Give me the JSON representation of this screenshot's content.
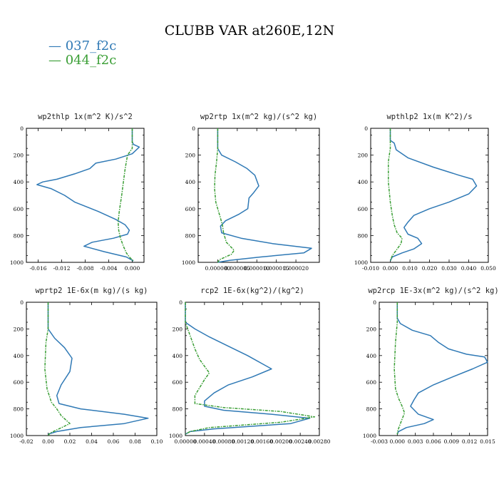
{
  "page": {
    "title": "CLUBB VAR at260E,12N"
  },
  "legend": [
    {
      "label": "— 037_f2c",
      "color": "#2f79b5"
    },
    {
      "label": "— 044_f2c",
      "color": "#3a9e35"
    }
  ],
  "chart_data": [
    {
      "type": "line",
      "title": "wp2thlp  1x(m^2 K)/s^2",
      "xlim": [
        -0.018,
        0.002
      ],
      "ylim": [
        1000,
        0
      ],
      "xticks": [
        -0.016,
        -0.012,
        -0.008,
        -0.004,
        0.0
      ],
      "xtick_labels": [
        "-0.016",
        "-0.012",
        "-0.008",
        "-0.004",
        "0.000"
      ],
      "yticks": [
        0,
        200,
        400,
        600,
        800,
        1000
      ],
      "series": [
        {
          "name": "037_f2c",
          "color": "#2f79b5",
          "dashed": false,
          "x": [
            0.0,
            0.0,
            0.0,
            0.0002,
            0.0012,
            0.0,
            -0.0028,
            -0.0062,
            -0.0072,
            -0.0098,
            -0.0128,
            -0.0152,
            -0.0162,
            -0.0138,
            -0.0115,
            -0.0098,
            -0.0058,
            -0.0028,
            -0.0012,
            -0.0005,
            -0.0008,
            -0.0032,
            -0.0068,
            -0.0082,
            -0.0048,
            -0.001,
            0.0002
          ],
          "y": [
            0,
            60,
            100,
            120,
            140,
            190,
            230,
            260,
            300,
            340,
            380,
            400,
            420,
            450,
            500,
            550,
            620,
            680,
            720,
            760,
            790,
            820,
            850,
            880,
            920,
            960,
            990
          ]
        },
        {
          "name": "044_f2c",
          "color": "#3a9e35",
          "dashed": true,
          "x": [
            0.0,
            0.0,
            0.0,
            -0.0008,
            -0.0012,
            -0.0015,
            -0.0018,
            -0.002,
            -0.0022,
            -0.0024,
            -0.0023,
            -0.002,
            -0.0015,
            -0.001,
            -0.0005,
            0.0002
          ],
          "y": [
            0,
            100,
            150,
            200,
            300,
            400,
            500,
            560,
            620,
            700,
            760,
            820,
            880,
            930,
            960,
            990
          ]
        }
      ]
    },
    {
      "type": "line",
      "title": "wp2rtp  1x(m^2 kg)/(s^2 kg)",
      "xlim": [
        -5e-06,
        2.6e-05
      ],
      "ylim": [
        1000,
        0
      ],
      "xticks": [
        0.0,
        5e-06,
        1e-05,
        1.5e-05,
        2e-05
      ],
      "xtick_labels": [
        "0.000000",
        "0.000005",
        "0.000010",
        "0.000015",
        "0.000020"
      ],
      "yticks": [
        0,
        200,
        400,
        600,
        800,
        1000
      ],
      "series": [
        {
          "name": "037_f2c",
          "color": "#2f79b5",
          "dashed": false,
          "x": [
            0.0,
            0.0,
            1e-06,
            4.5e-06,
            7.5e-06,
            9.5e-06,
            1.05e-05,
            9.2e-06,
            8e-06,
            7.7e-06,
            5.5e-06,
            2e-06,
            7e-07,
            1e-06,
            6e-06,
            1.4e-05,
            2.4e-05,
            2.2e-05,
            1.1e-05,
            3e-06,
            0.0
          ],
          "y": [
            0,
            150,
            200,
            250,
            300,
            350,
            430,
            480,
            520,
            600,
            640,
            690,
            730,
            780,
            820,
            860,
            895,
            930,
            960,
            985,
            1000
          ]
        },
        {
          "name": "044_f2c",
          "color": "#3a9e35",
          "dashed": true,
          "x": [
            0.0,
            0.0,
            -3e-07,
            -7e-07,
            -8e-07,
            -5e-07,
            5e-07,
            1.2e-06,
            1.5e-06,
            2.2e-06,
            4.2e-06,
            3.5e-06,
            5e-07,
            0.0
          ],
          "y": [
            0,
            150,
            250,
            350,
            450,
            550,
            650,
            720,
            780,
            850,
            910,
            940,
            980,
            1000
          ]
        }
      ]
    },
    {
      "type": "line",
      "title": "wpthlp2  1x(m K^2)/s",
      "xlim": [
        -0.01,
        0.05
      ],
      "ylim": [
        1000,
        0
      ],
      "xticks": [
        -0.01,
        0.0,
        0.01,
        0.02,
        0.03,
        0.04,
        0.05
      ],
      "xtick_labels": [
        "-0.010",
        "0.000",
        "0.010",
        "0.020",
        "0.030",
        "0.040",
        "0.050"
      ],
      "yticks": [
        0,
        200,
        400,
        600,
        800,
        1000
      ],
      "series": [
        {
          "name": "037_f2c",
          "color": "#2f79b5",
          "dashed": false,
          "x": [
            0.0,
            0.0,
            0.002,
            0.003,
            0.009,
            0.022,
            0.035,
            0.042,
            0.044,
            0.04,
            0.03,
            0.02,
            0.012,
            0.009,
            0.007,
            0.009,
            0.014,
            0.016,
            0.012,
            0.006,
            0.001,
            0.0
          ],
          "y": [
            0,
            90,
            110,
            160,
            220,
            290,
            350,
            380,
            430,
            490,
            550,
            600,
            650,
            700,
            740,
            790,
            820,
            860,
            900,
            930,
            960,
            990
          ]
        },
        {
          "name": "044_f2c",
          "color": "#3a9e35",
          "dashed": true,
          "x": [
            0.0,
            0.0,
            -0.001,
            -0.001,
            0.0,
            0.001,
            0.002,
            0.0035,
            0.006,
            0.0055,
            0.003,
            0.001,
            0.0
          ],
          "y": [
            0,
            150,
            250,
            400,
            550,
            650,
            720,
            780,
            820,
            860,
            910,
            950,
            990
          ]
        }
      ]
    },
    {
      "type": "line",
      "title": "wprtp2  1E-6x(m kg)/(s kg)",
      "xlim": [
        -0.02,
        0.1
      ],
      "ylim": [
        1000,
        0
      ],
      "xticks": [
        -0.02,
        0.0,
        0.02,
        0.04,
        0.06,
        0.08,
        0.1
      ],
      "xtick_labels": [
        "-0.02",
        "0.00",
        "0.02",
        "0.04",
        "0.06",
        "0.08",
        "0.10"
      ],
      "yticks": [
        0,
        200,
        400,
        600,
        800,
        1000
      ],
      "series": [
        {
          "name": "037_f2c",
          "color": "#2f79b5",
          "dashed": false,
          "x": [
            0.0,
            0.0,
            0.006,
            0.015,
            0.022,
            0.02,
            0.012,
            0.008,
            0.01,
            0.03,
            0.07,
            0.092,
            0.07,
            0.03,
            0.008,
            0.0
          ],
          "y": [
            0,
            200,
            270,
            340,
            420,
            520,
            620,
            700,
            760,
            800,
            840,
            870,
            910,
            940,
            970,
            990
          ]
        },
        {
          "name": "044_f2c",
          "color": "#3a9e35",
          "dashed": true,
          "x": [
            0.0,
            0.0,
            -0.002,
            -0.003,
            -0.001,
            0.003,
            0.008,
            0.012,
            0.02,
            0.01,
            0.002,
            0.0
          ],
          "y": [
            0,
            200,
            300,
            500,
            650,
            750,
            800,
            850,
            910,
            950,
            980,
            1000
          ]
        }
      ]
    },
    {
      "type": "line",
      "title": "rcp2  1E-6x(kg^2)/(kg^2)",
      "xlim": [
        0.0,
        0.0028
      ],
      "ylim": [
        1000,
        0
      ],
      "xticks": [
        0.0,
        0.0004,
        0.0008,
        0.0012,
        0.0016,
        0.002,
        0.0024,
        0.0028
      ],
      "xtick_labels": [
        "0.00000",
        "0.00040",
        "0.00080",
        "0.00120",
        "0.00160",
        "0.00200",
        "0.00240",
        "0.00280"
      ],
      "yticks": [
        0,
        200,
        400,
        600,
        800,
        1000
      ],
      "series": [
        {
          "name": "037_f2c",
          "color": "#2f79b5",
          "dashed": false,
          "x": [
            0.0,
            0.0,
            0.0002,
            0.0005,
            0.0009,
            0.0013,
            0.0016,
            0.0018,
            0.0014,
            0.0009,
            0.0006,
            0.0004,
            0.0004,
            0.0008,
            0.0018,
            0.0026,
            0.0022,
            0.0006,
            0.0001,
            0.0
          ],
          "y": [
            0,
            150,
            200,
            260,
            330,
            400,
            460,
            500,
            560,
            620,
            680,
            740,
            780,
            810,
            840,
            870,
            910,
            950,
            970,
            990
          ]
        },
        {
          "name": "044_f2c",
          "color": "#3a9e35",
          "dashed": true,
          "x": [
            0.0,
            0.0,
            0.0001,
            0.0002,
            0.0003,
            0.0004,
            0.0005,
            0.0004,
            0.0003,
            0.0002,
            0.0002,
            0.0008,
            0.002,
            0.0027,
            0.002,
            0.0005,
            0.0001,
            0.0
          ],
          "y": [
            0,
            150,
            250,
            350,
            430,
            480,
            530,
            580,
            640,
            700,
            760,
            790,
            820,
            860,
            900,
            940,
            970,
            990
          ]
        }
      ]
    },
    {
      "type": "line",
      "title": "wp2rcp  1E-3x(m^2 kg)/(s^2 kg)",
      "xlim": [
        -0.003,
        0.015
      ],
      "ylim": [
        1000,
        0
      ],
      "xticks": [
        -0.003,
        0.0,
        0.003,
        0.006,
        0.009,
        0.012,
        0.015
      ],
      "xtick_labels": [
        "-0.003",
        "0.000",
        "0.003",
        "0.006",
        "0.009",
        "0.012",
        "0.015"
      ],
      "yticks": [
        0,
        200,
        400,
        600,
        800,
        1000
      ],
      "series": [
        {
          "name": "037_f2c",
          "color": "#2f79b5",
          "dashed": false,
          "x": [
            0.0,
            0.0,
            0.0005,
            0.0025,
            0.0055,
            0.0068,
            0.0085,
            0.0115,
            0.0145,
            0.015,
            0.0125,
            0.0092,
            0.006,
            0.0035,
            0.0028,
            0.0022,
            0.0035,
            0.006,
            0.0045,
            0.0015,
            0.0002,
            0.0
          ],
          "y": [
            0,
            120,
            160,
            210,
            250,
            300,
            350,
            390,
            410,
            450,
            500,
            560,
            620,
            680,
            730,
            780,
            840,
            880,
            910,
            940,
            970,
            990
          ]
        },
        {
          "name": "044_f2c",
          "color": "#3a9e35",
          "dashed": true,
          "x": [
            0.0,
            0.0,
            -0.0003,
            -0.0005,
            -0.0003,
            0.0002,
            0.0008,
            0.0012,
            0.0006,
            0.0001,
            0.0
          ],
          "y": [
            0,
            150,
            300,
            500,
            650,
            720,
            780,
            830,
            900,
            960,
            990
          ]
        }
      ]
    }
  ]
}
